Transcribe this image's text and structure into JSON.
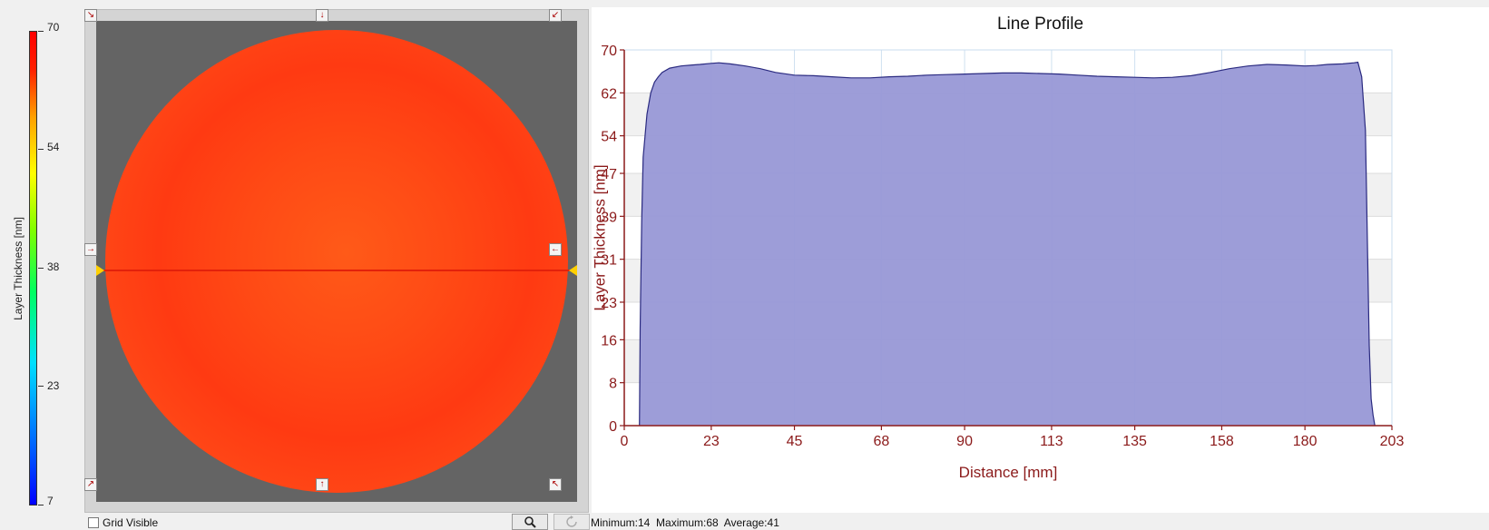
{
  "colorbar": {
    "label": "Layer Thickness  [nm]",
    "ticks": [
      "70",
      "54",
      "38",
      "23",
      "7"
    ],
    "tick_values": [
      70,
      54,
      38,
      23,
      7
    ],
    "min": 7,
    "max": 70
  },
  "map": {
    "background_color": "#646464",
    "line_color": "#e3210b",
    "arrows": {
      "top_left": "↘",
      "top_center": "↓",
      "top_right": "↙",
      "mid_left": "→",
      "mid_right": "←",
      "bottom_left": "↗",
      "bottom_center": "↑",
      "bottom_right": "↖"
    }
  },
  "controls": {
    "grid_visible_label": "Grid Visible",
    "grid_visible_checked": false,
    "zoom_icon": "magnifier-icon",
    "reset_icon": "reset-icon"
  },
  "stats": {
    "text": "Minimum:14  Maximum:68  Average:41"
  },
  "chart_data": {
    "type": "area",
    "title": "Line Profile",
    "xlabel": "Distance [mm]",
    "ylabel": "Layer Thickness  [nm]",
    "xlim": [
      0,
      203
    ],
    "ylim": [
      0,
      70
    ],
    "x_ticks": [
      0,
      23,
      45,
      68,
      90,
      113,
      135,
      158,
      180,
      203
    ],
    "x_tick_labels": [
      "0",
      "23",
      "45",
      "68",
      "90",
      "113",
      "135",
      "158",
      "180",
      "203"
    ],
    "y_ticks": [
      0,
      8,
      16,
      23,
      31,
      39,
      47,
      54,
      62,
      70
    ],
    "y_tick_labels": [
      "0",
      "8",
      "16",
      "23",
      "31",
      "39",
      "47",
      "54",
      "62",
      "70"
    ],
    "grid": true,
    "fill_color": "#9898d6",
    "line_color": "#2a2a80",
    "axis_color": "#8b1a1a",
    "series": [
      {
        "x": [
          4,
          4.2,
          4.6,
          5,
          6,
          7,
          8,
          9,
          10,
          12,
          15,
          18,
          20,
          23,
          25,
          28,
          32,
          36,
          40,
          45,
          50,
          55,
          60,
          65,
          70,
          75,
          80,
          85,
          90,
          95,
          100,
          105,
          110,
          115,
          120,
          125,
          130,
          135,
          140,
          145,
          150,
          155,
          160,
          165,
          170,
          175,
          180,
          183,
          186,
          190,
          193,
          194,
          195,
          196,
          196.5,
          197,
          197.5,
          198,
          198.5
        ],
        "y": [
          0,
          18,
          38,
          50,
          58,
          62,
          64,
          65,
          65.8,
          66.6,
          67,
          67.2,
          67.3,
          67.5,
          67.6,
          67.4,
          67,
          66.5,
          65.8,
          65.3,
          65.2,
          65,
          64.8,
          64.8,
          65,
          65.1,
          65.3,
          65.4,
          65.5,
          65.6,
          65.7,
          65.7,
          65.6,
          65.5,
          65.3,
          65.1,
          65,
          64.9,
          64.8,
          64.9,
          65.2,
          65.8,
          66.5,
          67,
          67.3,
          67.2,
          67,
          67.1,
          67.3,
          67.4,
          67.6,
          67.7,
          65,
          55,
          35,
          15,
          5,
          2,
          0
        ]
      }
    ]
  }
}
